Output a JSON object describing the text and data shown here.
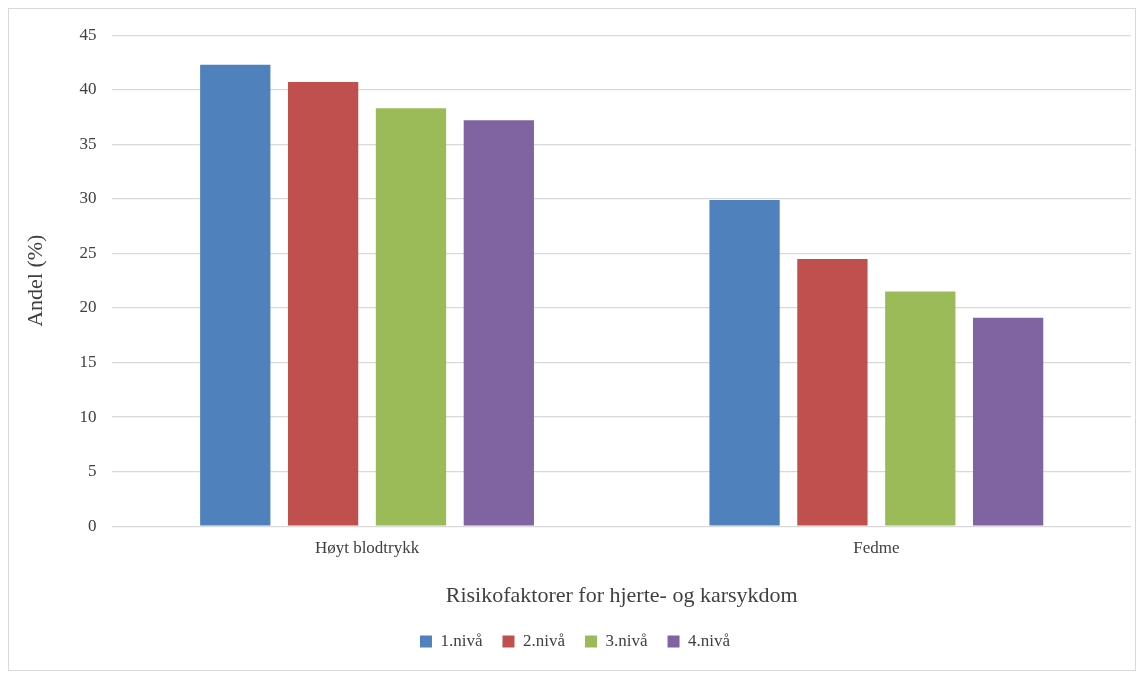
{
  "chart_data": {
    "type": "bar",
    "xlabel": "Risikofaktorer for hjerte- og karsykdom",
    "ylabel": "Andel (%)",
    "categories": [
      "Høyt blodtrykk",
      "Fedme"
    ],
    "series": [
      {
        "name": "1.nivå",
        "color": "#4f81bd",
        "values": [
          42.3,
          29.9
        ]
      },
      {
        "name": "2.nivå",
        "color": "#c0504d",
        "values": [
          40.7,
          24.5
        ]
      },
      {
        "name": "3.nivå",
        "color": "#9bbb59",
        "values": [
          38.3,
          21.5
        ]
      },
      {
        "name": "4.nivå",
        "color": "#8064a2",
        "values": [
          37.2,
          19.1
        ]
      }
    ],
    "ylim": [
      0,
      45
    ],
    "yticks": [
      0,
      5,
      10,
      15,
      20,
      25,
      30,
      35,
      40,
      45
    ],
    "grid": "y",
    "legend": "bottom"
  }
}
